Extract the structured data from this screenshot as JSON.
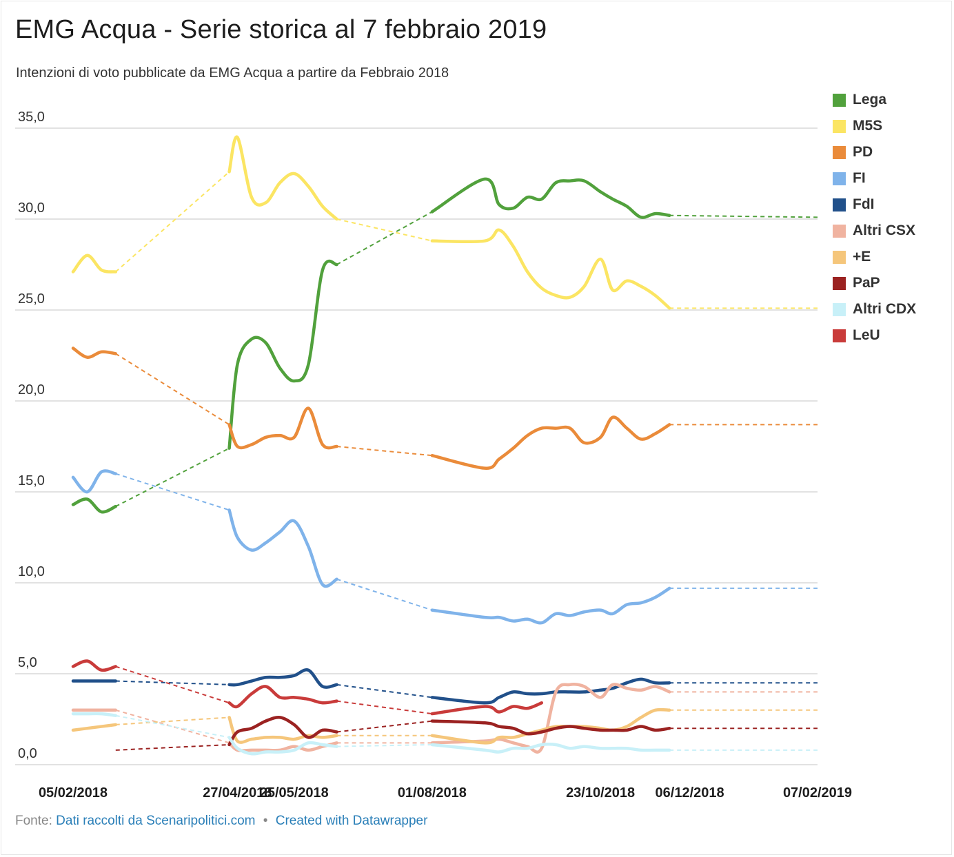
{
  "header": {
    "title": "EMG Acqua - Serie storica al 7 febbraio 2019",
    "subtitle": "Intenzioni di voto pubblicate da EMG Acqua a partire da Febbraio 2018"
  },
  "footer": {
    "prefix": "Fonte:",
    "source_link": "Dati raccolti da Scenaripolitici.com",
    "separator": "•",
    "credit_link": "Created with Datawrapper"
  },
  "chart_data": {
    "type": "line",
    "title": "EMG Acqua - Serie storica al 7 febbraio 2019",
    "subtitle": "Intenzioni di voto pubblicate da EMG Acqua a partire da Febbraio 2018",
    "xlabel": "",
    "ylabel": "",
    "ylim": [
      0,
      35
    ],
    "yticks": [
      "0,0",
      "5,0",
      "10,0",
      "15,0",
      "20,0",
      "25,0",
      "30,0",
      "35,0"
    ],
    "grid": true,
    "legend_position": "right",
    "x": [
      "2018-02-05",
      "2018-02-12",
      "2018-02-19",
      "2018-02-26",
      "2018-03-05",
      "2018-03-12",
      "2018-03-19",
      "2018-03-26",
      "2018-04-02",
      "2018-04-09",
      "2018-04-16",
      "2018-04-23",
      "2018-04-27",
      "2018-05-04",
      "2018-05-11",
      "2018-05-18",
      "2018-05-25",
      "2018-06-01",
      "2018-06-08",
      "2018-06-15",
      "2018-06-22",
      "2018-06-29",
      "2018-07-06",
      "2018-07-13",
      "2018-07-20",
      "2018-07-27",
      "2018-08-01",
      "2018-08-27",
      "2018-09-03",
      "2018-09-10",
      "2018-09-17",
      "2018-09-24",
      "2018-10-01",
      "2018-10-08",
      "2018-10-15",
      "2018-10-23",
      "2018-10-29",
      "2018-11-05",
      "2018-11-12",
      "2018-11-19",
      "2018-11-26",
      "2018-12-03",
      "2018-12-06",
      "2018-12-13",
      "2018-12-20",
      "2018-12-27",
      "2019-01-03",
      "2019-01-10",
      "2019-01-17",
      "2019-01-24",
      "2019-01-31",
      "2019-02-07"
    ],
    "xtick_labels": [
      "05/02/2018",
      "27/04/2018",
      "25/05/2018",
      "01/08/2018",
      "23/10/2018",
      "06/12/2018",
      "07/02/2019"
    ],
    "series": [
      {
        "name": "Lega",
        "color": "#51a13c",
        "values": [
          14.3,
          14.6,
          13.9,
          14.2,
          null,
          null,
          null,
          null,
          null,
          null,
          null,
          17.4,
          22.0,
          23.4,
          23.2,
          21.8,
          21.1,
          22.0,
          27.2,
          27.5,
          null,
          null,
          null,
          null,
          null,
          null,
          30.4,
          32.2,
          30.8,
          30.6,
          31.2,
          31.1,
          32.0,
          32.1,
          32.1,
          31.5,
          31.1,
          30.7,
          30.1,
          30.3,
          30.2,
          null,
          null,
          null,
          null,
          null,
          null,
          null,
          null,
          null,
          null,
          30.1
        ]
      },
      {
        "name": "M5S",
        "color": "#fbe563",
        "values": [
          27.1,
          28.0,
          27.2,
          27.1,
          null,
          null,
          null,
          null,
          null,
          null,
          null,
          32.6,
          34.5,
          31.2,
          30.9,
          32.0,
          32.5,
          31.8,
          30.7,
          30.0,
          null,
          null,
          null,
          null,
          null,
          null,
          28.8,
          28.8,
          29.4,
          28.5,
          27.1,
          26.2,
          25.8,
          25.7,
          26.3,
          27.8,
          26.1,
          26.6,
          26.3,
          25.8,
          25.1,
          null,
          null,
          null,
          null,
          null,
          null,
          null,
          null,
          null,
          null,
          25.1
        ]
      },
      {
        "name": "PD",
        "color": "#ea8b3a",
        "values": [
          22.9,
          22.4,
          22.7,
          22.6,
          null,
          null,
          null,
          null,
          null,
          null,
          null,
          18.7,
          17.5,
          17.6,
          18.0,
          18.1,
          18.0,
          19.6,
          17.6,
          17.5,
          null,
          null,
          null,
          null,
          null,
          null,
          17.0,
          16.3,
          16.8,
          17.4,
          18.1,
          18.5,
          18.5,
          18.5,
          17.7,
          18.0,
          19.1,
          18.5,
          17.9,
          18.2,
          18.7,
          null,
          null,
          null,
          null,
          null,
          null,
          null,
          null,
          null,
          null,
          18.7
        ]
      },
      {
        "name": "FI",
        "color": "#7fb3ea",
        "values": [
          15.8,
          15.0,
          16.1,
          16.0,
          null,
          null,
          null,
          null,
          null,
          null,
          null,
          14.0,
          12.5,
          11.8,
          12.2,
          12.8,
          13.4,
          12.0,
          9.9,
          10.2,
          null,
          null,
          null,
          null,
          null,
          null,
          8.5,
          8.1,
          8.1,
          7.9,
          8.0,
          7.8,
          8.3,
          8.2,
          8.4,
          8.5,
          8.3,
          8.8,
          8.9,
          9.2,
          9.7,
          null,
          null,
          null,
          null,
          null,
          null,
          null,
          null,
          null,
          null,
          9.7
        ]
      },
      {
        "name": "FdI",
        "color": "#21508a",
        "values": [
          4.6,
          4.6,
          4.6,
          4.6,
          null,
          null,
          null,
          null,
          null,
          null,
          null,
          4.4,
          4.4,
          4.6,
          4.8,
          4.8,
          4.9,
          5.2,
          4.3,
          4.4,
          null,
          null,
          null,
          null,
          null,
          null,
          3.7,
          3.4,
          3.7,
          4.0,
          3.9,
          3.9,
          4.0,
          4.0,
          4.0,
          4.1,
          4.2,
          4.5,
          4.7,
          4.5,
          4.5,
          null,
          null,
          null,
          null,
          null,
          null,
          null,
          null,
          null,
          null,
          4.5
        ]
      },
      {
        "name": "Altri CSX",
        "color": "#f0b3a0",
        "values": [
          3.0,
          3.0,
          3.0,
          3.0,
          null,
          null,
          null,
          null,
          null,
          null,
          null,
          1.2,
          0.8,
          0.8,
          0.8,
          0.8,
          1.0,
          0.8,
          1.0,
          1.2,
          null,
          null,
          null,
          null,
          null,
          null,
          1.2,
          1.3,
          1.4,
          1.2,
          1.0,
          0.9,
          4.0,
          4.4,
          4.3,
          3.7,
          4.4,
          4.2,
          4.1,
          4.3,
          4.0,
          null,
          null,
          null,
          null,
          null,
          null,
          null,
          null,
          null,
          null,
          4.0
        ]
      },
      {
        "name": "+E",
        "color": "#f5c67b",
        "values": [
          1.9,
          2.0,
          2.1,
          2.2,
          null,
          null,
          null,
          null,
          null,
          null,
          null,
          2.6,
          1.3,
          1.4,
          1.5,
          1.5,
          1.4,
          1.6,
          1.5,
          1.6,
          null,
          null,
          null,
          null,
          null,
          null,
          1.6,
          1.2,
          1.5,
          1.5,
          1.7,
          1.9,
          2.1,
          2.1,
          2.1,
          2.0,
          1.9,
          2.1,
          2.6,
          3.0,
          3.0,
          null,
          null,
          null,
          null,
          null,
          null,
          null,
          null,
          null,
          null,
          3.0
        ]
      },
      {
        "name": "PaP",
        "color": "#9b2221",
        "values": [
          null,
          null,
          null,
          0.8,
          null,
          null,
          null,
          null,
          null,
          null,
          null,
          1.1,
          1.8,
          2.0,
          2.4,
          2.6,
          2.2,
          1.5,
          1.9,
          1.8,
          null,
          null,
          null,
          null,
          null,
          null,
          2.4,
          2.3,
          2.1,
          2.0,
          1.7,
          1.8,
          2.0,
          2.1,
          2.0,
          1.9,
          1.9,
          1.9,
          2.1,
          1.9,
          2.0,
          null,
          null,
          null,
          null,
          null,
          null,
          null,
          null,
          null,
          null,
          2.0
        ]
      },
      {
        "name": "Altri CDX",
        "color": "#c8f0f8",
        "values": [
          2.8,
          2.8,
          2.8,
          2.7,
          null,
          null,
          null,
          null,
          null,
          null,
          null,
          1.5,
          0.9,
          0.6,
          0.7,
          0.7,
          0.8,
          1.2,
          1.1,
          1.0,
          null,
          null,
          null,
          null,
          null,
          null,
          1.1,
          0.8,
          0.7,
          0.9,
          0.9,
          1.1,
          1.1,
          0.9,
          1.0,
          0.9,
          0.9,
          0.9,
          0.8,
          0.8,
          0.8,
          null,
          null,
          null,
          null,
          null,
          null,
          null,
          null,
          null,
          null,
          0.8
        ]
      },
      {
        "name": "LeU",
        "color": "#c93b3a",
        "values": [
          5.4,
          5.7,
          5.2,
          5.4,
          null,
          null,
          null,
          null,
          null,
          null,
          null,
          3.4,
          3.2,
          3.9,
          4.3,
          3.7,
          3.7,
          3.6,
          3.4,
          3.5,
          null,
          null,
          null,
          null,
          null,
          null,
          2.8,
          3.2,
          2.9,
          3.2,
          3.1,
          3.4,
          null,
          null,
          null,
          null,
          null,
          null,
          null,
          null,
          null,
          null,
          null,
          null,
          null,
          null,
          null,
          null,
          null,
          null,
          null,
          null
        ]
      }
    ]
  }
}
